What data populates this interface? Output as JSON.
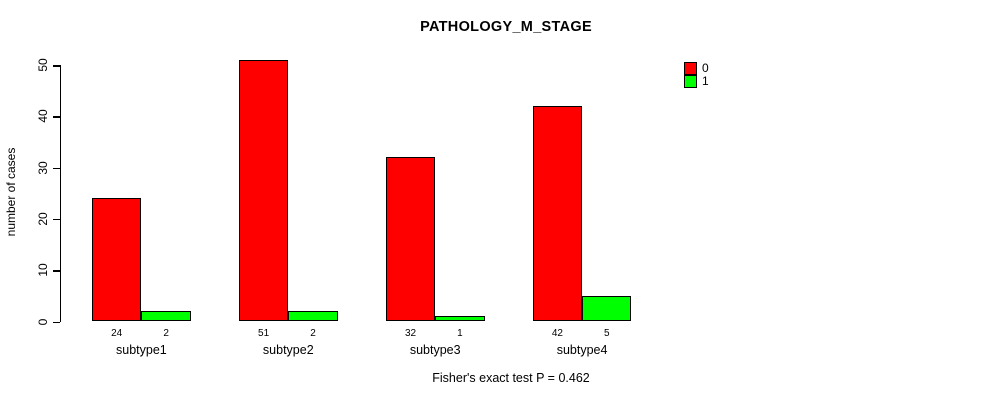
{
  "chart_data": {
    "type": "bar",
    "title": "PATHOLOGY_M_STAGE",
    "ylabel": "number of cases",
    "xlabel": "",
    "categories": [
      "subtype1",
      "subtype2",
      "subtype3",
      "subtype4"
    ],
    "series": [
      {
        "name": "0",
        "color": "#ff0000",
        "values": [
          24,
          51,
          32,
          42
        ]
      },
      {
        "name": "1",
        "color": "#00ff00",
        "values": [
          2,
          2,
          1,
          5
        ]
      }
    ],
    "bar_value_labels": {
      "series_0": [
        24,
        51,
        32,
        42
      ],
      "series_1": [
        2,
        2,
        1,
        5
      ]
    },
    "yticks": [
      0,
      10,
      20,
      30,
      40,
      50
    ],
    "ylim": [
      0,
      51
    ],
    "grid": false,
    "legend": {
      "position": "top-right",
      "entries": [
        "0",
        "1"
      ]
    },
    "annotation": "Fisher's exact test P = 0.462",
    "colors": {
      "series_0": "#ff0000",
      "series_1": "#00ff00",
      "axis": "#000000",
      "background": "#ffffff"
    }
  }
}
